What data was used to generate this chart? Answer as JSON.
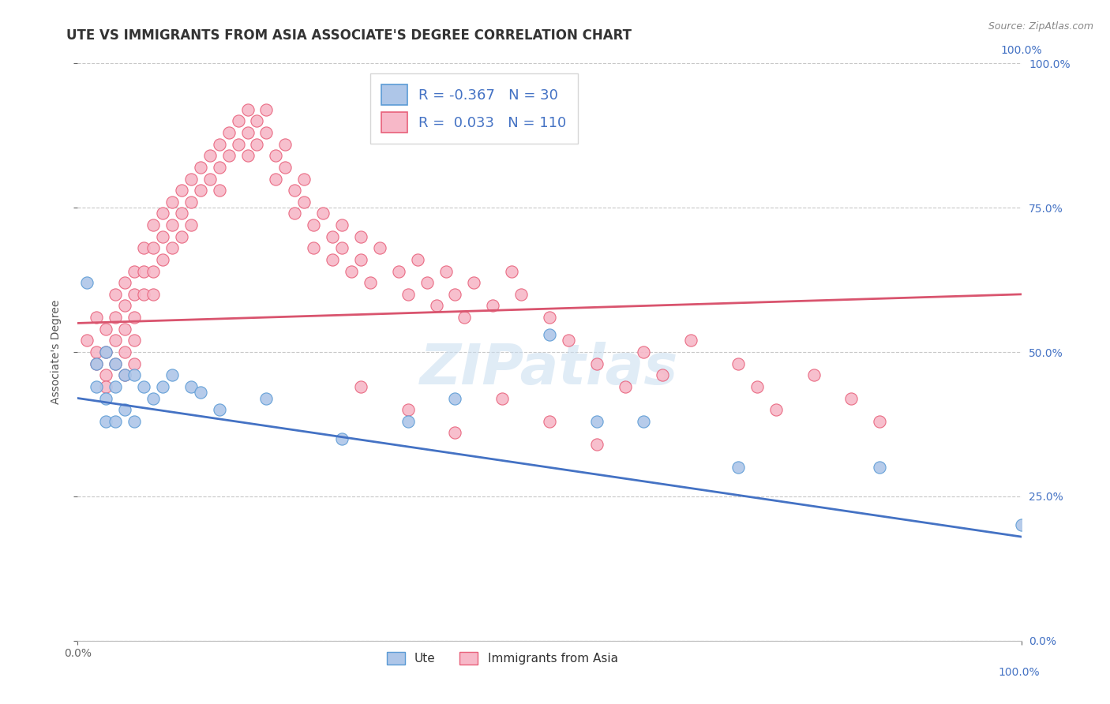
{
  "title": "UTE VS IMMIGRANTS FROM ASIA ASSOCIATE'S DEGREE CORRELATION CHART",
  "source_text": "Source: ZipAtlas.com",
  "watermark": "ZIPatlas",
  "ylabel": "Associate's Degree",
  "xlim": [
    0.0,
    1.0
  ],
  "ylim": [
    0.0,
    1.0
  ],
  "legend_labels": [
    "Ute",
    "Immigrants from Asia"
  ],
  "ute_R": -0.367,
  "ute_N": 30,
  "asia_R": 0.033,
  "asia_N": 110,
  "ute_color": "#aec6e8",
  "ute_edge_color": "#5b9bd5",
  "asia_color": "#f7b8c8",
  "asia_edge_color": "#e8607a",
  "ute_line_color": "#4472c4",
  "asia_line_color": "#d9546e",
  "background_color": "#ffffff",
  "grid_color": "#c8c8c8",
  "title_fontsize": 12,
  "axis_label_fontsize": 10,
  "tick_fontsize": 10,
  "right_tick_color": "#4472c4",
  "ute_x": [
    0.01,
    0.02,
    0.02,
    0.03,
    0.03,
    0.03,
    0.04,
    0.04,
    0.04,
    0.05,
    0.05,
    0.06,
    0.06,
    0.07,
    0.08,
    0.09,
    0.1,
    0.12,
    0.13,
    0.15,
    0.2,
    0.28,
    0.35,
    0.4,
    0.5,
    0.55,
    0.6,
    0.7,
    0.85,
    1.0
  ],
  "ute_y": [
    0.62,
    0.48,
    0.44,
    0.5,
    0.42,
    0.38,
    0.48,
    0.44,
    0.38,
    0.46,
    0.4,
    0.46,
    0.38,
    0.44,
    0.42,
    0.44,
    0.46,
    0.44,
    0.43,
    0.4,
    0.42,
    0.35,
    0.38,
    0.42,
    0.53,
    0.38,
    0.38,
    0.3,
    0.3,
    0.2
  ],
  "asia_x": [
    0.01,
    0.02,
    0.02,
    0.02,
    0.03,
    0.03,
    0.03,
    0.03,
    0.04,
    0.04,
    0.04,
    0.04,
    0.05,
    0.05,
    0.05,
    0.05,
    0.05,
    0.06,
    0.06,
    0.06,
    0.06,
    0.06,
    0.07,
    0.07,
    0.07,
    0.08,
    0.08,
    0.08,
    0.08,
    0.09,
    0.09,
    0.09,
    0.1,
    0.1,
    0.1,
    0.11,
    0.11,
    0.11,
    0.12,
    0.12,
    0.12,
    0.13,
    0.13,
    0.14,
    0.14,
    0.15,
    0.15,
    0.15,
    0.16,
    0.16,
    0.17,
    0.17,
    0.18,
    0.18,
    0.18,
    0.19,
    0.19,
    0.2,
    0.2,
    0.21,
    0.21,
    0.22,
    0.22,
    0.23,
    0.23,
    0.24,
    0.24,
    0.25,
    0.25,
    0.26,
    0.27,
    0.27,
    0.28,
    0.28,
    0.29,
    0.3,
    0.3,
    0.31,
    0.32,
    0.34,
    0.35,
    0.36,
    0.37,
    0.38,
    0.39,
    0.4,
    0.41,
    0.42,
    0.44,
    0.46,
    0.47,
    0.5,
    0.52,
    0.55,
    0.58,
    0.6,
    0.62,
    0.65,
    0.7,
    0.72,
    0.74,
    0.78,
    0.82,
    0.85,
    0.3,
    0.35,
    0.4,
    0.45,
    0.5,
    0.55
  ],
  "asia_y": [
    0.52,
    0.56,
    0.5,
    0.48,
    0.54,
    0.5,
    0.46,
    0.44,
    0.56,
    0.52,
    0.48,
    0.6,
    0.62,
    0.58,
    0.54,
    0.5,
    0.46,
    0.64,
    0.6,
    0.56,
    0.52,
    0.48,
    0.68,
    0.64,
    0.6,
    0.72,
    0.68,
    0.64,
    0.6,
    0.74,
    0.7,
    0.66,
    0.76,
    0.72,
    0.68,
    0.78,
    0.74,
    0.7,
    0.8,
    0.76,
    0.72,
    0.82,
    0.78,
    0.84,
    0.8,
    0.86,
    0.82,
    0.78,
    0.88,
    0.84,
    0.9,
    0.86,
    0.92,
    0.88,
    0.84,
    0.9,
    0.86,
    0.92,
    0.88,
    0.84,
    0.8,
    0.86,
    0.82,
    0.78,
    0.74,
    0.8,
    0.76,
    0.72,
    0.68,
    0.74,
    0.7,
    0.66,
    0.72,
    0.68,
    0.64,
    0.7,
    0.66,
    0.62,
    0.68,
    0.64,
    0.6,
    0.66,
    0.62,
    0.58,
    0.64,
    0.6,
    0.56,
    0.62,
    0.58,
    0.64,
    0.6,
    0.56,
    0.52,
    0.48,
    0.44,
    0.5,
    0.46,
    0.52,
    0.48,
    0.44,
    0.4,
    0.46,
    0.42,
    0.38,
    0.44,
    0.4,
    0.36,
    0.42,
    0.38,
    0.34
  ],
  "ute_line_x0": 0.0,
  "ute_line_x1": 1.0,
  "ute_line_y0": 0.42,
  "ute_line_y1": 0.18,
  "asia_line_x0": 0.0,
  "asia_line_x1": 1.0,
  "asia_line_y0": 0.55,
  "asia_line_y1": 0.6
}
